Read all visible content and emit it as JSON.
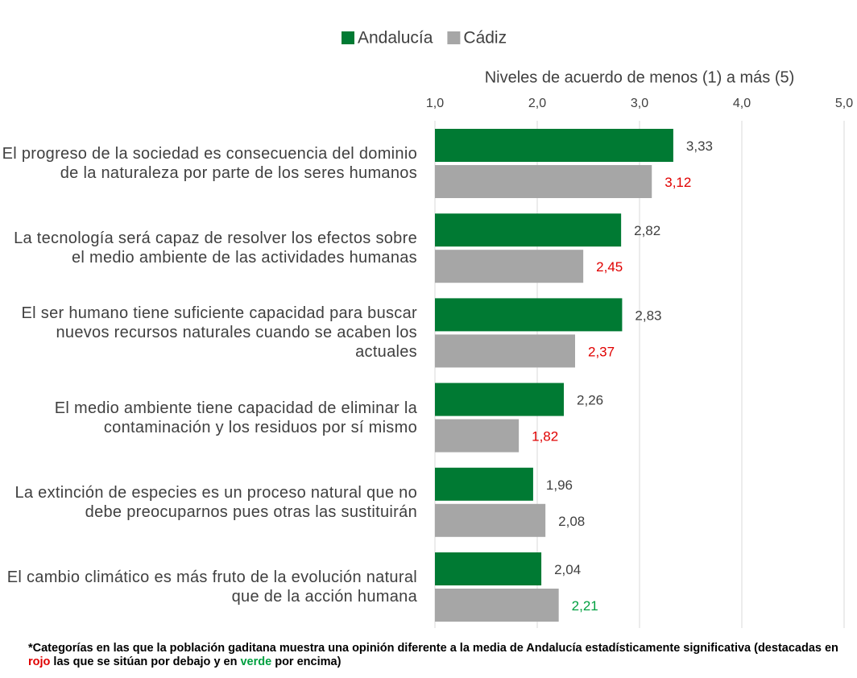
{
  "chart_data": {
    "type": "bar",
    "orientation": "horizontal",
    "xlabel": "Niveles de acuerdo de menos (1) a más (5)",
    "categories": [
      "El progreso de la sociedad es consecuencia del dominio de la naturaleza por parte de los seres humanos",
      "La tecnología será capaz de resolver los efectos sobre el medio ambiente de las actividades humanas",
      "El ser humano tiene suficiente capacidad para buscar nuevos recursos naturales cuando se acaben los actuales",
      "El medio ambiente tiene capacidad de eliminar la contaminación y los residuos por sí mismo",
      "La extinción de especies es un proceso natural que no debe preocuparnos pues otras las sustituirán",
      "El cambio climático es más fruto de la evolución natural que de la acción humana"
    ],
    "series": [
      {
        "name": "Andalucía",
        "color": "#007a33",
        "values": [
          3.33,
          2.82,
          2.83,
          2.26,
          1.96,
          2.04
        ],
        "value_labels": [
          "3,33",
          "2,82",
          "2,83",
          "2,26",
          "1,96",
          "2,04"
        ],
        "value_label_colors": [
          "#404040",
          "#404040",
          "#404040",
          "#404040",
          "#404040",
          "#404040"
        ]
      },
      {
        "name": "Cádiz",
        "color": "#a6a6a6",
        "values": [
          3.12,
          2.45,
          2.37,
          1.82,
          2.08,
          2.21
        ],
        "value_labels": [
          "3,12",
          "2,45",
          "2,37",
          "1,82",
          "2,08",
          "2,21"
        ],
        "value_label_colors": [
          "#e00000",
          "#e00000",
          "#e00000",
          "#e00000",
          "#404040",
          "#00a040"
        ]
      }
    ],
    "xlim": [
      1,
      5
    ],
    "xticks": [
      {
        "value": 1,
        "label": "1,0"
      },
      {
        "value": 2,
        "label": "2,0"
      },
      {
        "value": 3,
        "label": "3,0"
      },
      {
        "value": 4,
        "label": "4,0"
      },
      {
        "value": 5,
        "label": "5,0"
      }
    ],
    "grid": true,
    "legend": "top",
    "footnote": [
      "*Categorías en las que la población gaditana muestra una opinión diferente a la media de Andalucía estadísticamente significativa (destacadas en ",
      "rojo",
      " las que se sitúan por debajo y en ",
      "verde",
      " por encima)"
    ],
    "footnote_colors": [
      "#000000",
      "#e00000",
      "#000000",
      "#00a040",
      "#000000"
    ]
  }
}
